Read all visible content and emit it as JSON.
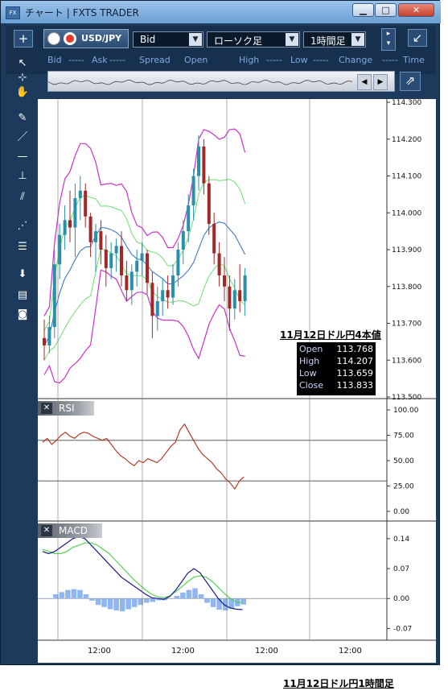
{
  "window": {
    "title": "チャート | FXTS TRADER",
    "app_icon": "FX",
    "controls": {
      "minimize": "▁",
      "maximize": "□",
      "close": "✕"
    }
  },
  "toolbar": {
    "add_label": "+",
    "symbol": "USD/JPY",
    "price_type": "Bid",
    "chart_type": "ローソク足",
    "timeframe": "1時間足",
    "popout_label": "↙"
  },
  "quote_row": {
    "items": [
      "Bid",
      "-----",
      "Ask",
      "-----",
      "Spread",
      "Open",
      "High",
      "-----",
      "Low",
      "-----",
      "Change",
      "-----",
      "Time"
    ]
  },
  "side_tools": [
    "cursor-icon",
    "crosshair-icon",
    "hand-icon",
    "marker-icon",
    "trendline-icon",
    "horizontal-line-icon",
    "vertical-line-icon",
    "channel-icon",
    "fibonacci-fan-icon",
    "fibonacci-retracement-icon",
    "download-icon",
    "list-icon",
    "camera-icon"
  ],
  "panes": {
    "rsi_label": "RSI",
    "macd_label": "MACD",
    "close_label": "✕"
  },
  "colors": {
    "candle_up": "#2a8fa8",
    "candle_down": "#a02828",
    "bollinger_outer": "#c832c8",
    "bollinger_inner": "#6ee06e",
    "moving_average": "#2e6fc4",
    "rsi_line": "#b42a14",
    "macd_line": "#1a1a8a",
    "signal_line": "#54d254",
    "histogram": "#8fb6f0"
  },
  "ohlc_box": {
    "rows": [
      {
        "key": "Open",
        "value": "113.768"
      },
      {
        "key": "High",
        "value": "114.207"
      },
      {
        "key": "Low",
        "value": "113.659"
      },
      {
        "key": "Close",
        "value": "113.833"
      }
    ]
  },
  "captions": {
    "top": "11月12日ドル円4本値",
    "bottom": "11月12日ドル円1時間足"
  },
  "chart_data": [
    {
      "type": "candlestick",
      "pane": "price",
      "y_ticks": [
        "114.300",
        "114.200",
        "114.100",
        "114.000",
        "113.900",
        "113.800",
        "113.700",
        "113.600",
        "113.500"
      ],
      "ylim": [
        113.5,
        114.3
      ],
      "x_ticks": [
        "12:00",
        "12:00",
        "12:00",
        "12:00"
      ],
      "candles": [
        [
          113.66,
          113.71,
          113.6,
          113.64
        ],
        [
          113.64,
          113.72,
          113.62,
          113.69
        ],
        [
          113.69,
          113.9,
          113.66,
          113.86
        ],
        [
          113.86,
          113.97,
          113.82,
          113.94
        ],
        [
          113.94,
          114.02,
          113.9,
          113.98
        ],
        [
          113.98,
          114.06,
          113.92,
          113.96
        ],
        [
          113.96,
          114.08,
          113.88,
          114.04
        ],
        [
          114.04,
          114.1,
          113.98,
          114.06
        ],
        [
          114.06,
          114.08,
          113.96,
          113.99
        ],
        [
          113.99,
          114.0,
          113.88,
          113.92
        ],
        [
          113.92,
          113.97,
          113.84,
          113.95
        ],
        [
          113.95,
          113.98,
          113.86,
          113.9
        ],
        [
          113.9,
          113.94,
          113.8,
          113.85
        ],
        [
          113.85,
          113.92,
          113.82,
          113.89
        ],
        [
          113.89,
          113.93,
          113.84,
          113.91
        ],
        [
          113.91,
          113.95,
          113.8,
          113.83
        ],
        [
          113.83,
          113.87,
          113.76,
          113.79
        ],
        [
          113.79,
          113.86,
          113.75,
          113.84
        ],
        [
          113.84,
          113.9,
          113.8,
          113.87
        ],
        [
          113.87,
          113.92,
          113.83,
          113.89
        ],
        [
          113.89,
          113.9,
          113.78,
          113.81
        ],
        [
          113.81,
          113.84,
          113.66,
          113.72
        ],
        [
          113.72,
          113.8,
          113.68,
          113.76
        ],
        [
          113.76,
          113.82,
          113.72,
          113.79
        ],
        [
          113.79,
          113.83,
          113.74,
          113.77
        ],
        [
          113.77,
          113.86,
          113.75,
          113.83
        ],
        [
          113.83,
          113.92,
          113.8,
          113.9
        ],
        [
          113.9,
          113.98,
          113.86,
          113.95
        ],
        [
          113.95,
          114.05,
          113.92,
          114.02
        ],
        [
          114.02,
          114.12,
          113.98,
          114.1
        ],
        [
          114.1,
          114.21,
          114.06,
          114.18
        ],
        [
          114.18,
          114.2,
          114.05,
          114.08
        ],
        [
          114.08,
          114.1,
          113.94,
          113.97
        ],
        [
          113.97,
          114.0,
          113.86,
          113.89
        ],
        [
          113.89,
          113.92,
          113.8,
          113.83
        ],
        [
          113.83,
          113.88,
          113.76,
          113.8
        ],
        [
          113.8,
          113.83,
          113.68,
          113.74
        ],
        [
          113.74,
          113.82,
          113.71,
          113.79
        ],
        [
          113.79,
          113.86,
          113.73,
          113.76
        ],
        [
          113.76,
          113.85,
          113.72,
          113.83
        ]
      ]
    },
    {
      "type": "line",
      "pane": "rsi",
      "y_ticks": [
        "100.00",
        "75.00",
        "50.00",
        "25.00",
        "0.00"
      ],
      "ylim": [
        0,
        100
      ],
      "levels": [
        70,
        30
      ],
      "values": [
        68,
        72,
        66,
        70,
        75,
        78,
        74,
        72,
        76,
        78,
        77,
        74,
        72,
        70,
        72,
        66,
        60,
        55,
        52,
        48,
        45,
        50,
        48,
        52,
        50,
        48,
        52,
        58,
        64,
        68,
        80,
        86,
        78,
        70,
        62,
        56,
        52,
        48,
        42,
        38,
        32,
        28,
        22,
        30,
        34
      ]
    },
    {
      "type": "line",
      "pane": "macd",
      "y_ticks": [
        "0.14",
        "0.07",
        "0.00",
        "-0.07"
      ],
      "ylim": [
        -0.09,
        0.17
      ],
      "macd": [
        0.11,
        0.105,
        0.11,
        0.12,
        0.13,
        0.14,
        0.145,
        0.14,
        0.125,
        0.11,
        0.095,
        0.08,
        0.065,
        0.05,
        0.04,
        0.03,
        0.02,
        0.01,
        0.002,
        0.0,
        -0.002,
        0.005,
        0.02,
        0.04,
        0.06,
        0.07,
        0.06,
        0.04,
        0.02,
        0.0,
        -0.015,
        -0.022,
        -0.025,
        -0.026
      ],
      "signal": [
        0.115,
        0.11,
        0.105,
        0.105,
        0.11,
        0.12,
        0.125,
        0.13,
        0.13,
        0.125,
        0.115,
        0.105,
        0.09,
        0.075,
        0.06,
        0.045,
        0.032,
        0.02,
        0.01,
        0.004,
        0.002,
        0.006,
        0.016,
        0.028,
        0.04,
        0.05,
        0.053,
        0.05,
        0.04,
        0.026,
        0.012,
        0.0,
        -0.008,
        -0.01
      ],
      "histogram": [
        0.0,
        0.0,
        0.01,
        0.015,
        0.02,
        0.022,
        0.02,
        0.01,
        -0.005,
        -0.015,
        -0.02,
        -0.025,
        -0.028,
        -0.03,
        -0.025,
        -0.02,
        -0.015,
        -0.01,
        -0.008,
        -0.004,
        -0.004,
        0.0,
        0.006,
        0.014,
        0.02,
        0.024,
        0.01,
        -0.01,
        -0.02,
        -0.026,
        -0.028,
        -0.024,
        -0.018,
        -0.014
      ]
    }
  ]
}
